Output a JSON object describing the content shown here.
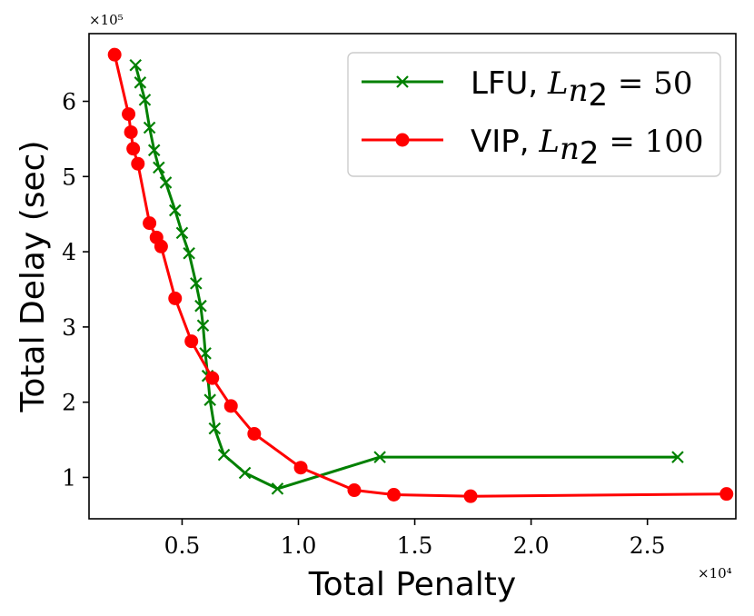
{
  "chart_data": {
    "type": "line",
    "title": "",
    "xlabel": "Total Penalty",
    "ylabel": "Total Delay (sec)",
    "x_scale_label": "×10⁴",
    "y_scale_label": "×10⁵",
    "xlim": [
      0.1,
      2.88
    ],
    "ylim": [
      0.45,
      6.9
    ],
    "x_ticks": [
      0.5,
      1.0,
      1.5,
      2.0,
      2.5
    ],
    "x_tick_labels": [
      "0.5",
      "1.0",
      "1.5",
      "2.0",
      "2.5"
    ],
    "y_ticks": [
      1,
      2,
      3,
      4,
      5,
      6
    ],
    "y_tick_labels": [
      "1",
      "2",
      "3",
      "4",
      "5",
      "6"
    ],
    "grid": false,
    "legend_position": "top-right",
    "series": [
      {
        "name": "LFU, L_{n_2} = 50",
        "legend_prefix": "LFU, ",
        "legend_math": "L",
        "legend_sub": "n",
        "legend_subsub": "2",
        "legend_suffix": " = 50",
        "color": "#008000",
        "marker": "x",
        "x": [
          0.3,
          0.32,
          0.34,
          0.36,
          0.38,
          0.4,
          0.43,
          0.47,
          0.5,
          0.53,
          0.56,
          0.58,
          0.59,
          0.6,
          0.61,
          0.62,
          0.64,
          0.68,
          0.77,
          0.91,
          1.35,
          2.63
        ],
        "y": [
          6.48,
          6.25,
          6.02,
          5.65,
          5.35,
          5.12,
          4.92,
          4.55,
          4.25,
          3.98,
          3.58,
          3.28,
          3.02,
          2.65,
          2.35,
          2.03,
          1.65,
          1.3,
          1.06,
          0.85,
          1.27,
          1.27
        ]
      },
      {
        "name": "VIP, L_{n_2} = 100",
        "legend_prefix": "VIP, ",
        "legend_math": "L",
        "legend_sub": "n",
        "legend_subsub": "2",
        "legend_suffix": " = 100",
        "color": "#ff0000",
        "marker": "o",
        "x": [
          0.21,
          0.27,
          0.28,
          0.29,
          0.31,
          0.36,
          0.39,
          0.41,
          0.47,
          0.54,
          0.63,
          0.71,
          0.81,
          1.01,
          1.24,
          1.41,
          1.74,
          2.84
        ],
        "y": [
          6.62,
          5.83,
          5.59,
          5.37,
          5.17,
          4.38,
          4.19,
          4.07,
          3.38,
          2.81,
          2.32,
          1.95,
          1.58,
          1.13,
          0.83,
          0.77,
          0.75,
          0.78
        ]
      }
    ]
  }
}
